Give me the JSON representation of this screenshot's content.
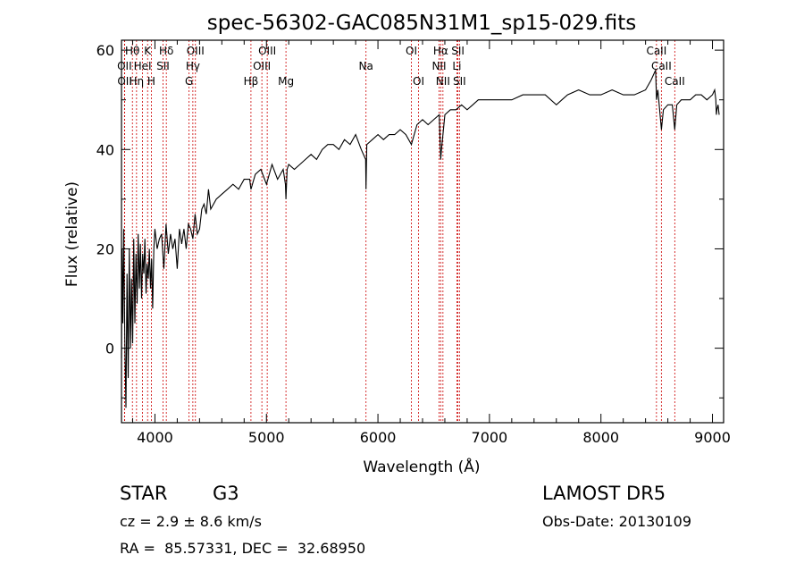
{
  "chart_data": {
    "type": "line",
    "title": "spec-56302-GAC085N31M1_sp15-029.fits",
    "xlabel": "Wavelength (Å)",
    "ylabel": "Flux (relative)",
    "xlim": [
      3700,
      9100
    ],
    "ylim": [
      -15,
      62
    ],
    "xticks": [
      4000,
      5000,
      6000,
      7000,
      8000,
      9000
    ],
    "yticks": [
      0,
      20,
      40,
      60
    ],
    "series": [
      {
        "x": [
          3700,
          3705,
          3712,
          3720,
          3730,
          3740,
          3750,
          3760,
          3770,
          3780,
          3790,
          3800,
          3810,
          3820,
          3830,
          3840,
          3850,
          3860,
          3870,
          3880,
          3890,
          3900,
          3910,
          3920,
          3930,
          3940,
          3950,
          3960,
          3970,
          3980,
          3990,
          4000,
          4020,
          4040,
          4060,
          4080,
          4100,
          4120,
          4140,
          4160,
          4180,
          4200,
          4220,
          4240,
          4260,
          4280,
          4300,
          4320,
          4340,
          4360,
          4380,
          4400,
          4420,
          4440,
          4460,
          4480,
          4500,
          4550,
          4600,
          4650,
          4700,
          4750,
          4800,
          4850,
          4861,
          4900,
          4950,
          5000,
          5050,
          5100,
          5150,
          5170,
          5175,
          5185,
          5200,
          5250,
          5300,
          5350,
          5400,
          5450,
          5500,
          5550,
          5600,
          5650,
          5700,
          5750,
          5800,
          5850,
          5890,
          5893,
          5900,
          5950,
          6000,
          6050,
          6100,
          6150,
          6200,
          6250,
          6300,
          6350,
          6400,
          6450,
          6500,
          6550,
          6563,
          6570,
          6600,
          6650,
          6700,
          6750,
          6800,
          6850,
          6900,
          6950,
          7000,
          7100,
          7200,
          7300,
          7400,
          7500,
          7600,
          7650,
          7700,
          7800,
          7900,
          8000,
          8100,
          8200,
          8300,
          8400,
          8450,
          8490,
          8498,
          8510,
          8530,
          8542,
          8560,
          8600,
          8640,
          8662,
          8680,
          8720,
          8760,
          8800,
          8850,
          8900,
          8950,
          9000,
          9020,
          9030,
          9035,
          9040,
          9050,
          9060
        ],
        "values": [
          -2,
          20,
          5,
          24,
          2,
          -12,
          15,
          -6,
          20,
          0,
          14,
          1,
          22,
          5,
          19,
          9,
          23,
          12,
          21,
          10,
          19,
          15,
          22,
          11,
          17,
          14,
          20,
          12,
          18,
          8,
          20,
          24,
          20,
          22,
          23,
          16,
          25,
          19,
          23,
          20,
          22,
          16,
          24,
          21,
          24,
          20,
          25,
          24,
          22,
          27,
          23,
          24,
          28,
          29,
          27,
          32,
          28,
          30,
          31,
          32,
          33,
          32,
          34,
          34,
          32,
          35,
          36,
          33,
          37,
          34,
          36,
          33,
          30,
          36,
          37,
          36,
          37,
          38,
          39,
          38,
          40,
          41,
          41,
          40,
          42,
          41,
          43,
          40,
          38,
          32,
          41,
          42,
          43,
          42,
          43,
          43,
          44,
          43,
          41,
          45,
          46,
          45,
          46,
          47,
          38,
          40,
          47,
          48,
          48,
          49,
          48,
          49,
          50,
          50,
          50,
          50,
          50,
          51,
          51,
          51,
          49,
          50,
          51,
          52,
          51,
          51,
          52,
          51,
          51,
          52,
          54,
          56,
          50,
          52,
          47,
          44,
          48,
          49,
          49,
          44,
          49,
          50,
          50,
          50,
          51,
          51,
          50,
          51,
          52,
          50,
          47,
          48,
          49,
          47
        ]
      }
    ],
    "line_ids": [
      {
        "label": "Hθ",
        "x": 3798,
        "row": 1
      },
      {
        "label": "K",
        "x": 3934,
        "row": 1
      },
      {
        "label": "Hδ",
        "x": 4102,
        "row": 1
      },
      {
        "label": "OIII",
        "x": 4363,
        "row": 1
      },
      {
        "label": "OIII",
        "x": 5007,
        "row": 1
      },
      {
        "label": "OI",
        "x": 6300,
        "row": 1
      },
      {
        "label": "Hα",
        "x": 6563,
        "row": 1
      },
      {
        "label": "SII",
        "x": 6717,
        "row": 1
      },
      {
        "label": "CaII",
        "x": 8498,
        "row": 1
      },
      {
        "label": "OII",
        "x": 3727,
        "row": 2
      },
      {
        "label": "HeI",
        "x": 3889,
        "row": 2
      },
      {
        "label": "SII",
        "x": 4072,
        "row": 2
      },
      {
        "label": "Hγ",
        "x": 4340,
        "row": 2
      },
      {
        "label": "OIII",
        "x": 4959,
        "row": 2
      },
      {
        "label": "Na",
        "x": 5893,
        "row": 2
      },
      {
        "label": "NII",
        "x": 6548,
        "row": 2
      },
      {
        "label": "Li",
        "x": 6708,
        "row": 2
      },
      {
        "label": "CaII",
        "x": 8542,
        "row": 2
      },
      {
        "label": "OII",
        "x": 3729,
        "row": 3
      },
      {
        "label": "Hη",
        "x": 3835,
        "row": 3
      },
      {
        "label": "H",
        "x": 3968,
        "row": 3
      },
      {
        "label": "G",
        "x": 4306,
        "row": 3
      },
      {
        "label": "Hβ",
        "x": 4861,
        "row": 3
      },
      {
        "label": "Mg",
        "x": 5175,
        "row": 3
      },
      {
        "label": "OI",
        "x": 6364,
        "row": 3
      },
      {
        "label": "NII",
        "x": 6583,
        "row": 3
      },
      {
        "label": "SII",
        "x": 6731,
        "row": 3
      },
      {
        "label": "CaII",
        "x": 8662,
        "row": 3
      }
    ],
    "line_marker_color": "#cc0000",
    "line_color": "#000000",
    "grid": false
  },
  "info": {
    "object_class": "STAR",
    "subclass": "G3",
    "survey": "LAMOST DR5",
    "velocity": "cz = 2.9 ± 8.6 km/s",
    "obs_date": "Obs-Date: 20130109",
    "coords": "RA =  85.57331, DEC =  32.68950"
  }
}
